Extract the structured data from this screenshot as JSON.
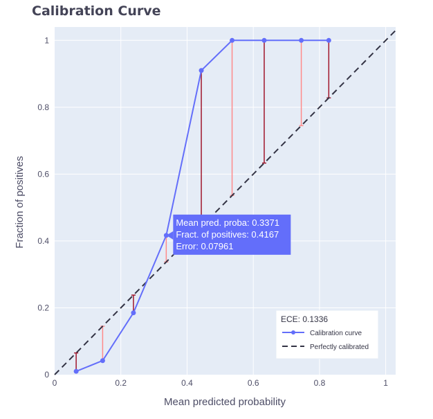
{
  "chart_data": {
    "type": "line",
    "title": "Calibration Curve",
    "xlabel": "Mean predicted probability",
    "ylabel": "Fraction of positives",
    "xlim": [
      0,
      1.03
    ],
    "ylim": [
      0,
      1.04
    ],
    "x_ticks": [
      0,
      0.2,
      0.4,
      0.6,
      0.8,
      1
    ],
    "x_tick_labels": [
      "0",
      "0.2",
      "0.4",
      "0.6",
      "0.8",
      "1"
    ],
    "y_ticks": [
      0,
      0.2,
      0.4,
      0.6,
      0.8,
      1
    ],
    "y_tick_labels": [
      "0",
      "0.2",
      "0.4",
      "0.6",
      "0.8",
      "1"
    ],
    "grid": true,
    "legend_placement": "bottom-right",
    "legend_title": "ECE: 0.1336",
    "series": [
      {
        "name": "Calibration curve",
        "color": "#636efa",
        "x": [
          0.065,
          0.145,
          0.238,
          0.3371,
          0.443,
          0.536,
          0.633,
          0.745,
          0.828
        ],
        "y": [
          0.01,
          0.042,
          0.185,
          0.4167,
          0.91,
          1.0,
          1.0,
          1.0,
          1.0
        ]
      },
      {
        "name": "Perfectly calibrated",
        "color": "#333344",
        "dash": true,
        "x": [
          0,
          1.03
        ],
        "y": [
          0,
          1.03
        ]
      }
    ],
    "error_colors": [
      "#a0152a",
      "#ff8a8a"
    ],
    "hover": {
      "lines": [
        "Mean pred. proba: 0.3371",
        "Fract. of positives: 0.4167",
        "Error: 0.07961"
      ]
    }
  }
}
